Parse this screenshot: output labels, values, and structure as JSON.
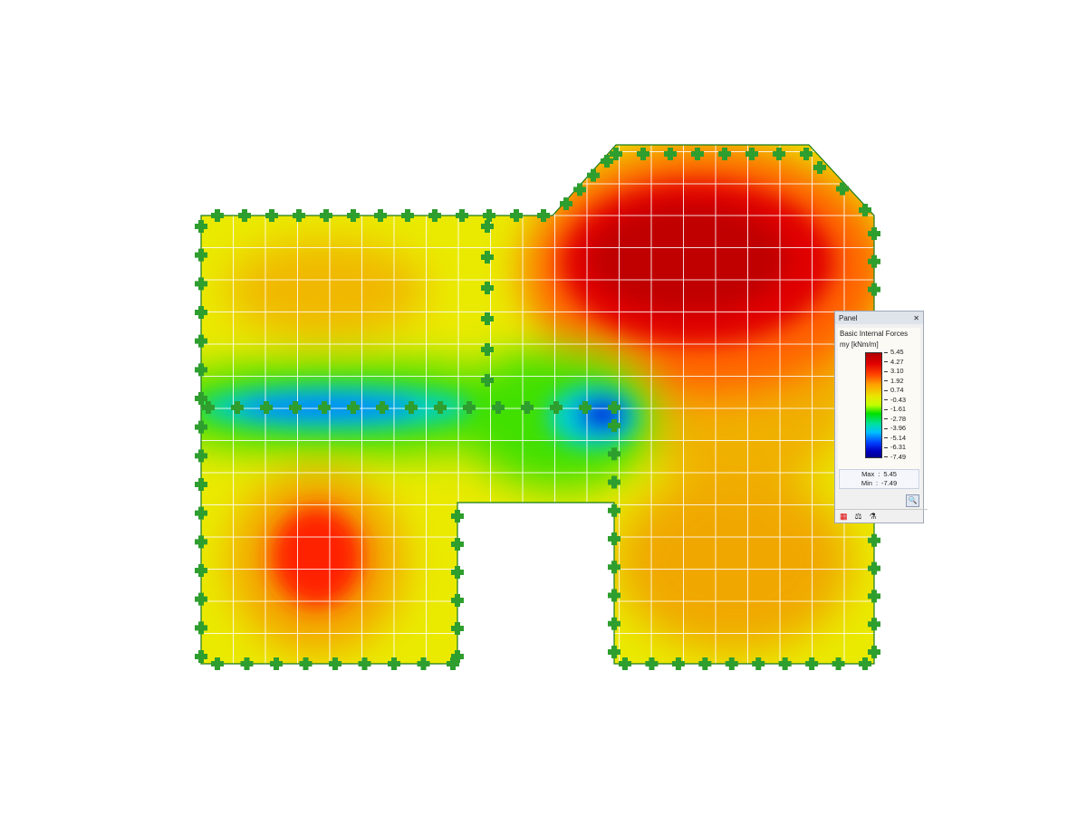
{
  "panel": {
    "title": "Panel",
    "close_icon": "close-icon",
    "heading": "Basic Internal Forces",
    "quantity": "my [kNm/m]",
    "legend_values": [
      "5.45",
      "4.27",
      "3.10",
      "1.92",
      "0.74",
      "-0.43",
      "-1.61",
      "-2.78",
      "-3.96",
      "-5.14",
      "-6.31",
      "-7.49"
    ],
    "max_label": "Max",
    "max_value": "5.45",
    "min_label": "Min",
    "min_value": "-7.49",
    "zoom_icon": "magnifier-icon",
    "tool_icons": [
      "color-scale-icon",
      "balance-icon",
      "microscope-icon"
    ]
  },
  "colors": {
    "max": "#b00000",
    "min": "#000090",
    "support": "#2e9e2e",
    "outline": "#1a7a1a"
  }
}
